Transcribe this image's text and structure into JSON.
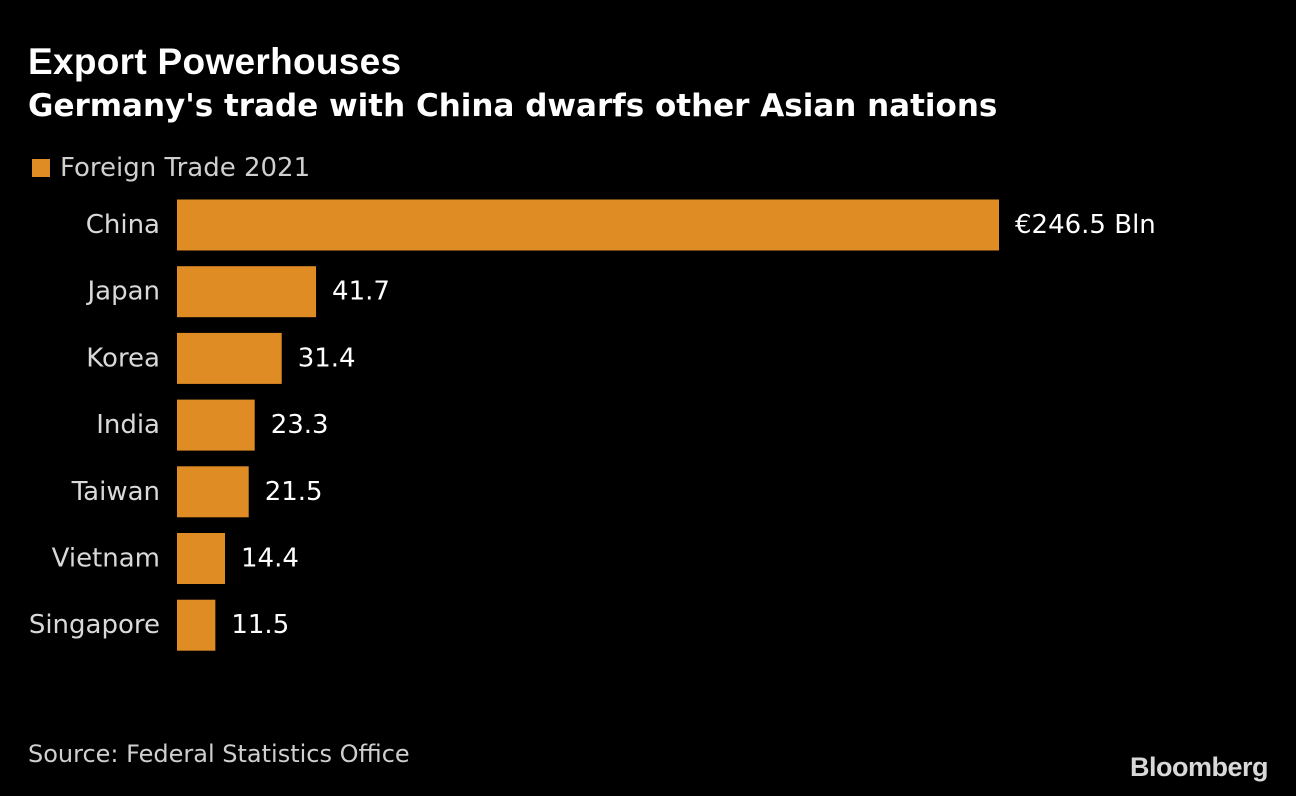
{
  "header": {
    "title": "Export Powerhouses",
    "subtitle": "Germany's trade with China dwarfs other Asian nations"
  },
  "legend": {
    "label": "Foreign Trade 2021",
    "color": "#e08c25"
  },
  "footer": {
    "source": "Source: Federal Statistics Office",
    "logo": "Bloomberg"
  },
  "chart_data": {
    "type": "bar",
    "orientation": "horizontal",
    "categories": [
      "China",
      "Japan",
      "Korea",
      "India",
      "Taiwan",
      "Vietnam",
      "Singapore"
    ],
    "series": [
      {
        "name": "Foreign Trade 2021",
        "values": [
          246.5,
          41.7,
          31.4,
          23.3,
          21.5,
          14.4,
          11.5
        ],
        "color": "#e08c25"
      }
    ],
    "data_labels": [
      "€246.5 Bln",
      "41.7",
      "31.4",
      "23.3",
      "21.5",
      "14.4",
      "11.5"
    ],
    "title": "Export Powerhouses",
    "subtitle": "Germany's trade with China dwarfs other Asian nations",
    "xlabel": "",
    "ylabel": "",
    "xlim": [
      0,
      246.5
    ],
    "grid": false,
    "legend_position": "top-left"
  }
}
